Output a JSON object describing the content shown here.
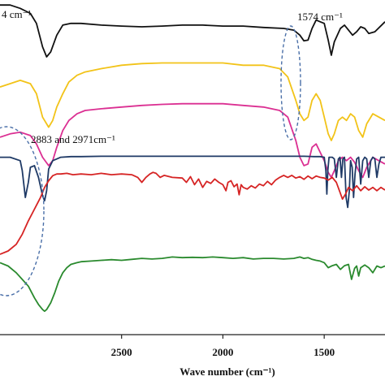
{
  "chart_data": {
    "type": "line",
    "title": "",
    "xlabel": "Wave number (cm⁻¹)",
    "ylabel": "",
    "xlim": [
      3100,
      1200
    ],
    "x_ticks": [
      2500,
      2000,
      1500
    ],
    "x_tick_labels": [
      "2500",
      "2000",
      "1500"
    ],
    "legend": "none",
    "grid": false,
    "annotations": [
      {
        "text": "4 cm⁻¹"
      },
      {
        "text": "1574 cm⁻¹"
      },
      {
        "text": "2883 and 2971cm⁻¹"
      }
    ],
    "series": [
      {
        "color": "#111111",
        "x": [
          3100,
          3050,
          3000,
          2950,
          2920,
          2890,
          2870,
          2850,
          2820,
          2790,
          2750,
          2700,
          2600,
          2500,
          2400,
          2300,
          2200,
          2100,
          2000,
          1900,
          1800,
          1700,
          1650,
          1620,
          1600,
          1580,
          1560,
          1540,
          1520,
          1500,
          1480,
          1465,
          1450,
          1420,
          1400,
          1380,
          1360,
          1340,
          1320,
          1300,
          1280,
          1250,
          1200
        ],
        "y": [
          0.985,
          0.985,
          0.975,
          0.96,
          0.93,
          0.86,
          0.83,
          0.845,
          0.895,
          0.925,
          0.93,
          0.93,
          0.925,
          0.922,
          0.92,
          0.922,
          0.925,
          0.925,
          0.922,
          0.922,
          0.918,
          0.915,
          0.91,
          0.895,
          0.878,
          0.88,
          0.915,
          0.94,
          0.935,
          0.93,
          0.88,
          0.835,
          0.875,
          0.915,
          0.925,
          0.91,
          0.895,
          0.905,
          0.92,
          0.915,
          0.9,
          0.905,
          0.935
        ]
      },
      {
        "color": "#f2c318",
        "x": [
          3100,
          3050,
          3000,
          2950,
          2920,
          2890,
          2860,
          2840,
          2820,
          2790,
          2760,
          2720,
          2680,
          2600,
          2500,
          2400,
          2300,
          2200,
          2100,
          2000,
          1900,
          1800,
          1720,
          1680,
          1640,
          1620,
          1600,
          1580,
          1560,
          1540,
          1520,
          1500,
          1480,
          1465,
          1450,
          1430,
          1410,
          1390,
          1370,
          1350,
          1330,
          1310,
          1290,
          1260,
          1230,
          1200
        ],
        "y": [
          0.74,
          0.75,
          0.76,
          0.75,
          0.72,
          0.65,
          0.62,
          0.64,
          0.68,
          0.72,
          0.755,
          0.775,
          0.785,
          0.795,
          0.805,
          0.81,
          0.812,
          0.812,
          0.812,
          0.812,
          0.805,
          0.805,
          0.795,
          0.77,
          0.7,
          0.66,
          0.64,
          0.65,
          0.7,
          0.72,
          0.7,
          0.65,
          0.6,
          0.58,
          0.6,
          0.64,
          0.65,
          0.64,
          0.66,
          0.65,
          0.61,
          0.59,
          0.63,
          0.66,
          0.65,
          0.64
        ]
      },
      {
        "color": "#db2f92",
        "x": [
          3100,
          3050,
          3000,
          2950,
          2920,
          2890,
          2860,
          2840,
          2820,
          2790,
          2760,
          2720,
          2680,
          2600,
          2500,
          2400,
          2300,
          2200,
          2100,
          2000,
          1900,
          1800,
          1720,
          1680,
          1640,
          1620,
          1600,
          1580,
          1560,
          1540,
          1520,
          1500,
          1480,
          1465,
          1450,
          1430,
          1410,
          1390,
          1370,
          1350,
          1330,
          1310,
          1290,
          1260,
          1230,
          1200
        ],
        "y": [
          0.59,
          0.6,
          0.605,
          0.595,
          0.57,
          0.53,
          0.505,
          0.52,
          0.56,
          0.61,
          0.64,
          0.66,
          0.67,
          0.675,
          0.68,
          0.685,
          0.688,
          0.69,
          0.69,
          0.69,
          0.685,
          0.68,
          0.67,
          0.65,
          0.58,
          0.53,
          0.505,
          0.51,
          0.56,
          0.57,
          0.545,
          0.52,
          0.485,
          0.47,
          0.49,
          0.52,
          0.53,
          0.52,
          0.53,
          0.515,
          0.49,
          0.47,
          0.5,
          0.53,
          0.52,
          0.51
        ]
      },
      {
        "color": "#1f3a66",
        "x": [
          3100,
          3050,
          3000,
          2990,
          2975,
          2960,
          2950,
          2930,
          2910,
          2890,
          2880,
          2870,
          2860,
          2840,
          2820,
          2800,
          2750,
          2700,
          2600,
          2500,
          2400,
          2300,
          2200,
          2100,
          2000,
          1900,
          1800,
          1700,
          1600,
          1550,
          1520,
          1500,
          1492,
          1487,
          1482,
          1476,
          1470,
          1460,
          1450,
          1440,
          1430,
          1422,
          1415,
          1408,
          1400,
          1392,
          1384,
          1376,
          1370,
          1362,
          1355,
          1348,
          1340,
          1330,
          1320,
          1310,
          1300,
          1290,
          1280,
          1270,
          1260,
          1250,
          1240,
          1230,
          1220,
          1210,
          1200
        ],
        "y": [
          0.53,
          0.53,
          0.52,
          0.49,
          0.41,
          0.455,
          0.5,
          0.505,
          0.47,
          0.415,
          0.4,
          0.43,
          0.495,
          0.52,
          0.525,
          0.53,
          0.532,
          0.532,
          0.533,
          0.533,
          0.533,
          0.533,
          0.533,
          0.533,
          0.533,
          0.533,
          0.533,
          0.533,
          0.533,
          0.532,
          0.532,
          0.53,
          0.49,
          0.42,
          0.49,
          0.53,
          0.53,
          0.53,
          0.525,
          0.47,
          0.525,
          0.53,
          0.47,
          0.525,
          0.53,
          0.41,
          0.38,
          0.43,
          0.52,
          0.5,
          0.41,
          0.48,
          0.525,
          0.53,
          0.45,
          0.52,
          0.53,
          0.525,
          0.47,
          0.52,
          0.53,
          0.525,
          0.47,
          0.51,
          0.53,
          0.53,
          0.53
        ]
      },
      {
        "color": "#d62424",
        "x": [
          3100,
          3060,
          3020,
          2990,
          2960,
          2930,
          2900,
          2880,
          2860,
          2840,
          2820,
          2800,
          2770,
          2740,
          2700,
          2650,
          2600,
          2550,
          2500,
          2450,
          2420,
          2400,
          2380,
          2360,
          2345,
          2330,
          2310,
          2290,
          2250,
          2200,
          2180,
          2160,
          2140,
          2120,
          2100,
          2080,
          2060,
          2040,
          2020,
          2000,
          1985,
          1975,
          1960,
          1945,
          1930,
          1920,
          1910,
          1900,
          1880,
          1860,
          1840,
          1820,
          1800,
          1780,
          1760,
          1740,
          1720,
          1700,
          1680,
          1660,
          1640,
          1620,
          1600,
          1580,
          1560,
          1540,
          1520,
          1500,
          1480,
          1460,
          1440,
          1425,
          1410,
          1395,
          1380,
          1360,
          1340,
          1320,
          1300,
          1280,
          1260,
          1240,
          1220,
          1200
        ],
        "y": [
          0.24,
          0.25,
          0.27,
          0.3,
          0.34,
          0.375,
          0.41,
          0.44,
          0.46,
          0.475,
          0.48,
          0.48,
          0.482,
          0.478,
          0.48,
          0.478,
          0.482,
          0.478,
          0.48,
          0.478,
          0.47,
          0.455,
          0.47,
          0.48,
          0.485,
          0.482,
          0.47,
          0.476,
          0.47,
          0.468,
          0.455,
          0.472,
          0.448,
          0.465,
          0.44,
          0.458,
          0.452,
          0.465,
          0.455,
          0.448,
          0.43,
          0.455,
          0.46,
          0.442,
          0.45,
          0.418,
          0.448,
          0.44,
          0.435,
          0.445,
          0.438,
          0.45,
          0.445,
          0.458,
          0.448,
          0.462,
          0.47,
          0.476,
          0.47,
          0.476,
          0.468,
          0.472,
          0.464,
          0.474,
          0.466,
          0.474,
          0.47,
          0.468,
          0.462,
          0.47,
          0.455,
          0.43,
          0.405,
          0.42,
          0.44,
          0.43,
          0.445,
          0.43,
          0.442,
          0.432,
          0.44,
          0.43,
          0.44,
          0.432
        ]
      },
      {
        "color": "#2a8a2e",
        "x": [
          3100,
          3060,
          3020,
          2990,
          2960,
          2930,
          2910,
          2890,
          2880,
          2870,
          2850,
          2830,
          2810,
          2790,
          2770,
          2750,
          2720,
          2700,
          2650,
          2600,
          2550,
          2500,
          2450,
          2400,
          2350,
          2300,
          2250,
          2200,
          2150,
          2100,
          2050,
          2000,
          1950,
          1900,
          1850,
          1800,
          1750,
          1700,
          1650,
          1620,
          1600,
          1580,
          1560,
          1540,
          1520,
          1500,
          1480,
          1460,
          1440,
          1420,
          1400,
          1380,
          1365,
          1350,
          1340,
          1330,
          1320,
          1300,
          1280,
          1260,
          1240,
          1220,
          1200
        ],
        "y": [
          0.215,
          0.205,
          0.185,
          0.165,
          0.145,
          0.11,
          0.09,
          0.075,
          0.07,
          0.075,
          0.095,
          0.125,
          0.16,
          0.185,
          0.2,
          0.21,
          0.215,
          0.218,
          0.22,
          0.222,
          0.224,
          0.222,
          0.225,
          0.228,
          0.226,
          0.228,
          0.232,
          0.23,
          0.231,
          0.23,
          0.232,
          0.23,
          0.228,
          0.23,
          0.226,
          0.228,
          0.228,
          0.226,
          0.228,
          0.232,
          0.228,
          0.23,
          0.225,
          0.222,
          0.22,
          0.215,
          0.2,
          0.206,
          0.21,
          0.195,
          0.206,
          0.21,
          0.165,
          0.198,
          0.205,
          0.175,
          0.2,
          0.208,
          0.2,
          0.185,
          0.205,
          0.2,
          0.205
        ]
      }
    ]
  }
}
